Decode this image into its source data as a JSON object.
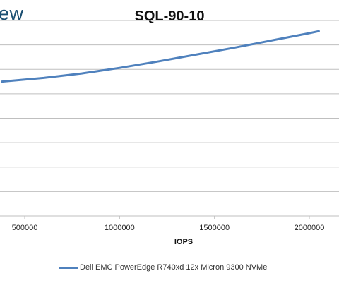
{
  "header": {
    "logo_text": "ew"
  },
  "chart_data": {
    "type": "line",
    "title": "SQL-90-10",
    "xlabel": "IOPS",
    "ylabel": "",
    "x_ticks": [
      "500000",
      "1000000",
      "1500000",
      "2000000"
    ],
    "x_tick_values": [
      500000,
      1000000,
      1500000,
      2000000
    ],
    "xlim": [
      420000,
      2050000
    ],
    "ylim": [
      0,
      8
    ],
    "grid": true,
    "legend_position": "bottom",
    "series": [
      {
        "name": "Dell EMC PowerEdge R740xd 12x Micron 9300 NVMe",
        "color": "#4f81bd",
        "x": [
          380000,
          600000,
          800000,
          1000000,
          1200000,
          1400000,
          1600000,
          1800000,
          2000000,
          2050000
        ],
        "y": [
          5.5,
          5.65,
          5.83,
          6.06,
          6.32,
          6.6,
          6.88,
          7.18,
          7.48,
          7.56
        ]
      }
    ]
  }
}
